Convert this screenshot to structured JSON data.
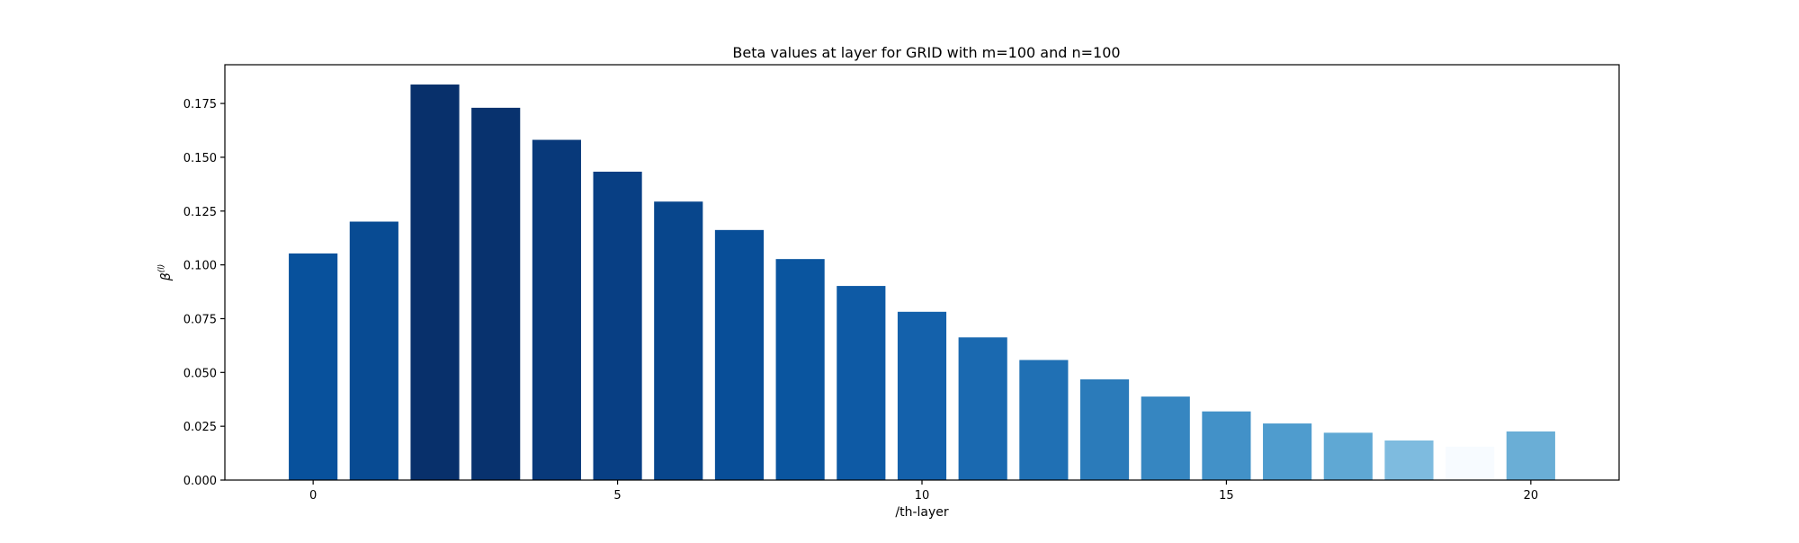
{
  "chart_data": {
    "type": "bar",
    "title": "Beta values at layer for GRID with m=100 and n=100",
    "xlabel": "/th-layer",
    "ylabel": "β",
    "ylabel_superscript": "(l)",
    "categories": [
      0,
      1,
      2,
      3,
      4,
      5,
      6,
      7,
      8,
      9,
      10,
      11,
      12,
      13,
      14,
      15,
      16,
      17,
      18,
      19,
      20
    ],
    "values": [
      0.1053,
      0.1201,
      0.1838,
      0.173,
      0.1581,
      0.1433,
      0.1294,
      0.1162,
      0.1027,
      0.0902,
      0.0782,
      0.0663,
      0.0558,
      0.0468,
      0.0388,
      0.0319,
      0.0263,
      0.022,
      0.0184,
      0.0155,
      0.0226
    ],
    "colors": [
      "#08519c",
      "#084b93",
      "#08306b",
      "#08326e",
      "#08397a",
      "#083f84",
      "#08468c",
      "#084e98",
      "#0a559f",
      "#0e5aa5",
      "#1461ab",
      "#1a69b0",
      "#2070b4",
      "#2b7bba",
      "#3686c1",
      "#4291c8",
      "#4f9cce",
      "#5fa8d4",
      "#7ebbdf",
      "#f7fbff",
      "#6aaed6"
    ],
    "xlim": [
      -1.45,
      21.45
    ],
    "ylim": [
      0,
      0.193
    ],
    "xticks": [
      0,
      5,
      10,
      15,
      20
    ],
    "yticks": [
      0,
      0.025,
      0.05,
      0.075,
      0.1,
      0.125,
      0.15,
      0.175
    ],
    "ytick_labels": [
      "0.000",
      "0.025",
      "0.050",
      "0.075",
      "0.100",
      "0.125",
      "0.150",
      "0.175"
    ],
    "grid": false,
    "legend": "none"
  }
}
